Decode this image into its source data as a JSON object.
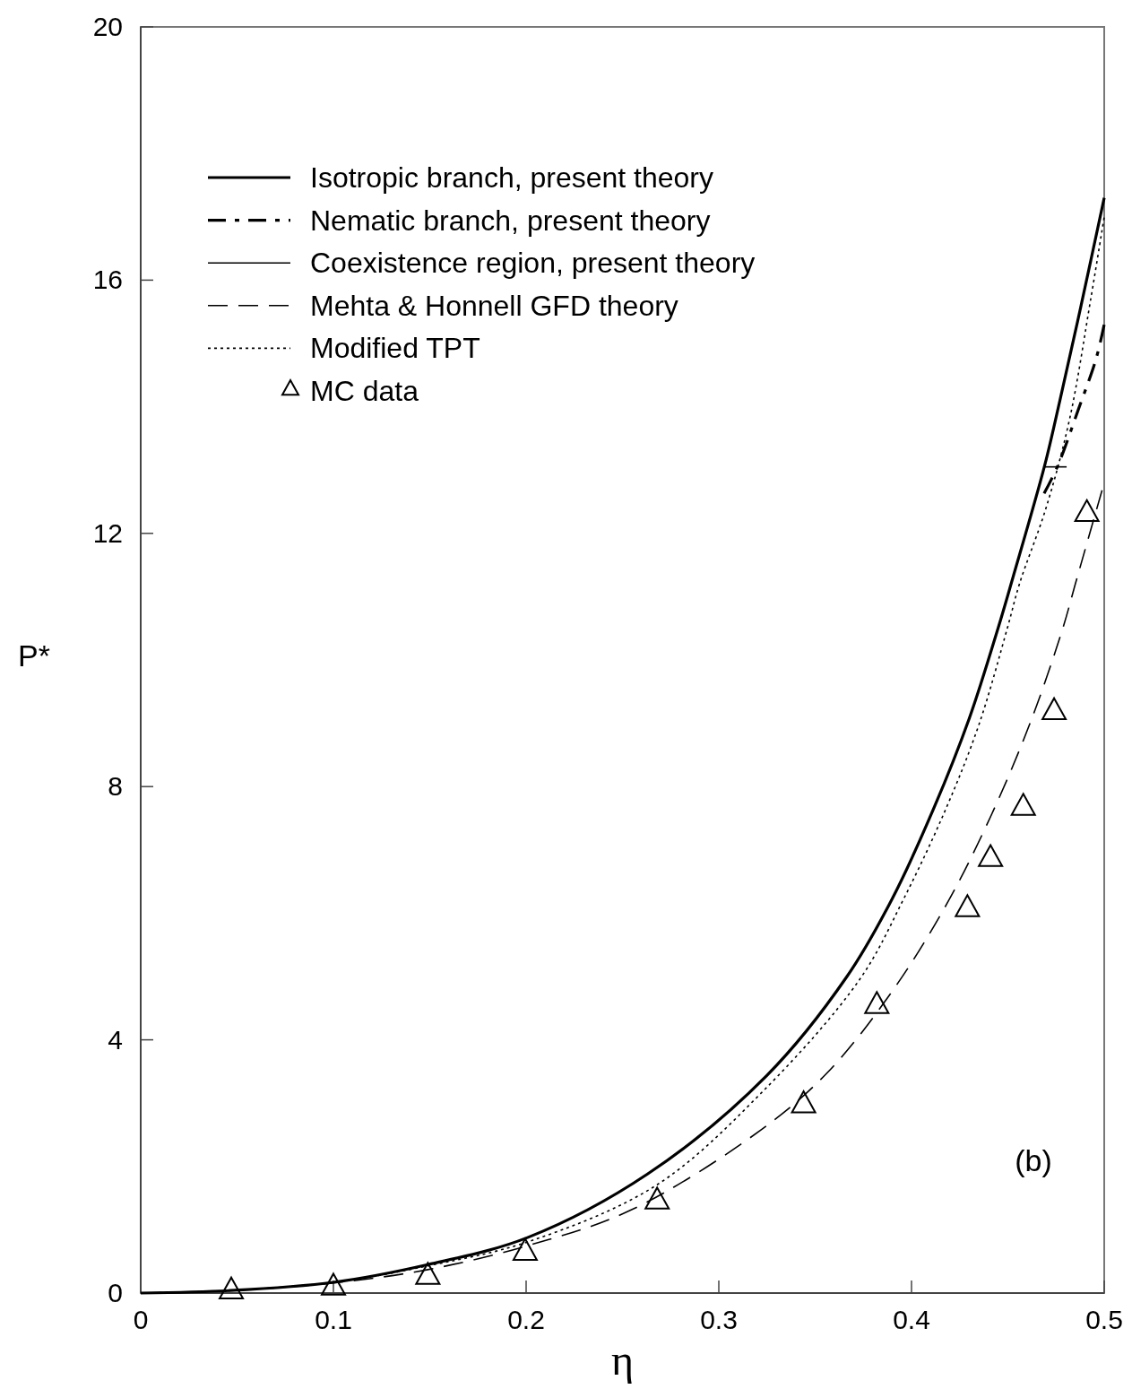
{
  "chart_data": {
    "type": "line",
    "xlabel": "η",
    "ylabel": "P*",
    "xlim": [
      0,
      0.5
    ],
    "ylim": [
      0,
      20
    ],
    "xticks": [
      0,
      0.1,
      0.2,
      0.3,
      0.4,
      0.5
    ],
    "yticks": [
      0,
      4,
      8,
      12,
      16,
      20
    ],
    "grid": false,
    "legend": "top left",
    "marker": "none",
    "annotations": [
      "(b)"
    ],
    "series": [
      {
        "name": "Isotropic branch, present theory",
        "color": "#000000",
        "line_style": "solid",
        "x": [
          0,
          0.0465,
          0.1,
          0.149,
          0.201,
          0.263,
          0.3247,
          0.3665,
          0.39,
          0.4116,
          0.43,
          0.445,
          0.4526,
          0.469,
          0.477,
          0.488,
          0.5
        ],
        "values": [
          0,
          0.04,
          0.17,
          0.45,
          0.88,
          1.88,
          3.43,
          5.0,
          6.23,
          7.66,
          9.08,
          10.51,
          11.3,
          13.06,
          14.1,
          15.6,
          17.3
        ]
      },
      {
        "name": "Nematic branch, present theory",
        "color": "#000000",
        "line_style": "dashdot",
        "x": [
          0.4688,
          0.4758,
          0.4865,
          0.4958,
          0.5
        ],
        "values": [
          12.63,
          13.06,
          13.95,
          14.76,
          15.3
        ]
      },
      {
        "name": "Coexistence region, present theory",
        "color": "#000000",
        "line_style": "solid",
        "x": [
          0.4688,
          0.4805
        ],
        "values": [
          13.05,
          13.05
        ]
      },
      {
        "name": "Mehta & Honnell GFD theory",
        "color": "#000000",
        "line_style": "dashed",
        "x": [
          0,
          0.0465,
          0.1,
          0.149,
          0.201,
          0.255,
          0.322,
          0.3563,
          0.3898,
          0.418,
          0.4414,
          0.462,
          0.4786,
          0.485,
          0.5
        ],
        "values": [
          0,
          0.04,
          0.16,
          0.37,
          0.75,
          1.32,
          2.58,
          3.48,
          4.76,
          6.13,
          7.55,
          9.04,
          10.51,
          11.2,
          12.8
        ]
      },
      {
        "name": "Modified TPT",
        "color": "#000000",
        "line_style": "dotted",
        "x": [
          0,
          0.0465,
          0.1,
          0.149,
          0.201,
          0.2674,
          0.322,
          0.373,
          0.396,
          0.418,
          0.435,
          0.4498,
          0.456,
          0.4698,
          0.482,
          0.493,
          0.5
        ],
        "values": [
          0,
          0.04,
          0.17,
          0.43,
          0.81,
          1.7,
          3.16,
          4.95,
          6.23,
          7.66,
          8.98,
          10.51,
          11.2,
          12.4,
          13.8,
          15.7,
          17.0
        ]
      },
      {
        "name": "MC data",
        "type": "scatter",
        "marker": "triangle",
        "color": "#000000",
        "x": [
          0.047,
          0.1,
          0.149,
          0.1995,
          0.268,
          0.344,
          0.382,
          0.429,
          0.441,
          0.458,
          0.474,
          0.491
        ],
        "values": [
          0.04,
          0.1,
          0.27,
          0.65,
          1.46,
          2.98,
          4.55,
          6.08,
          6.87,
          7.68,
          9.19,
          12.32
        ]
      }
    ]
  }
}
